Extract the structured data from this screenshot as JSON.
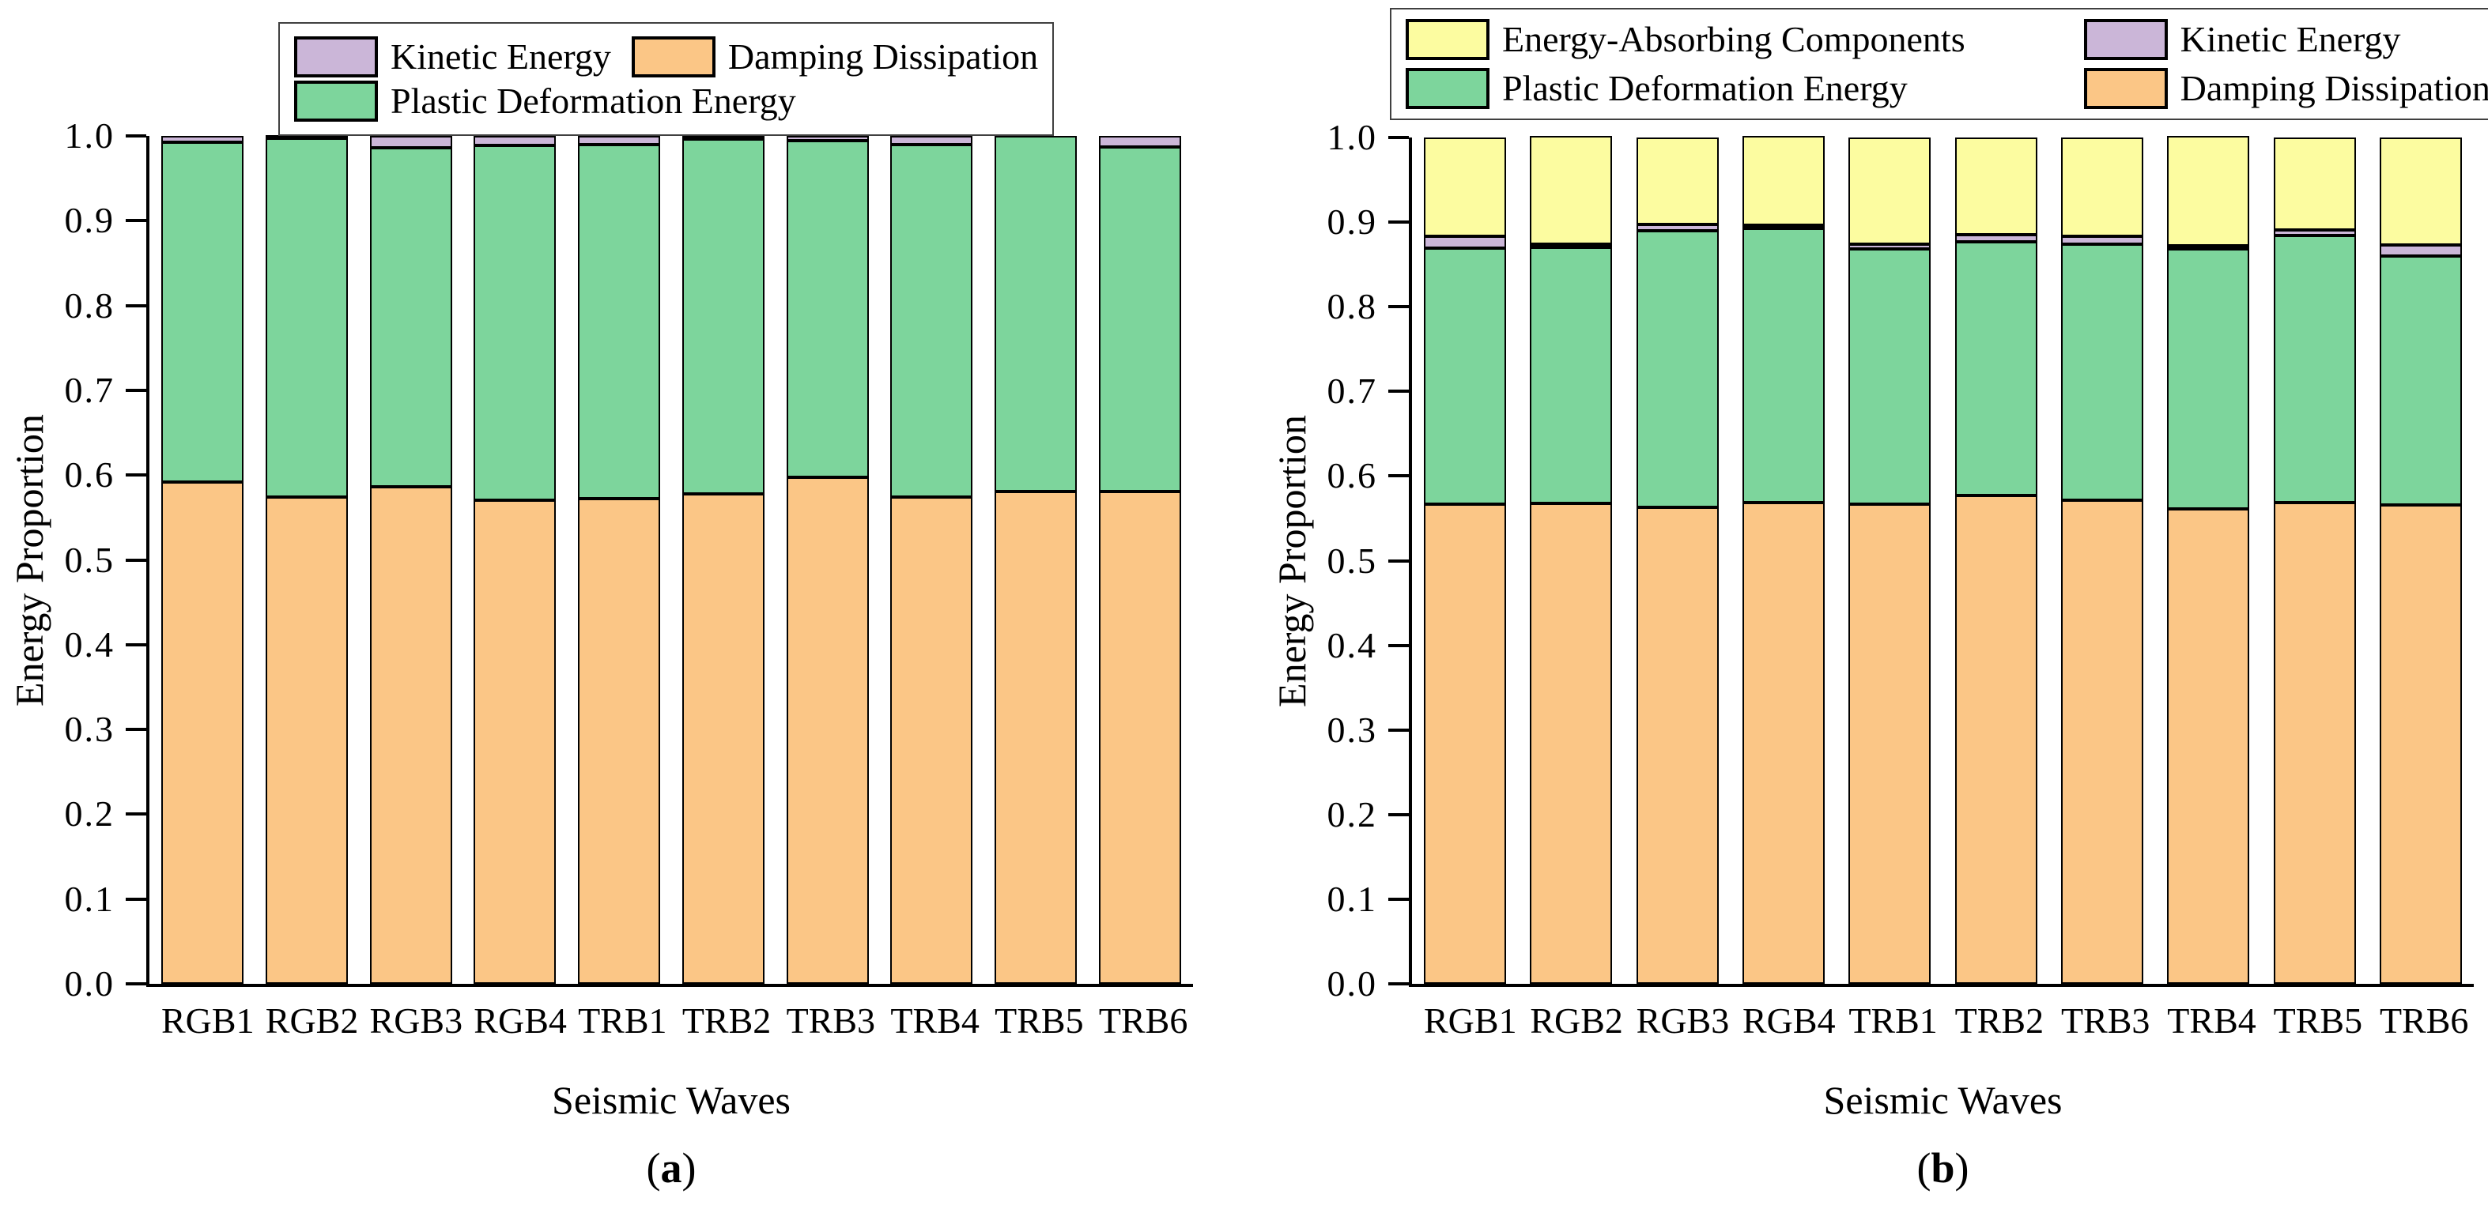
{
  "chart_data": [
    {
      "type": "bar",
      "stacked": true,
      "panel": "a",
      "caption_open": "(",
      "caption_letter": "a",
      "caption_close": ")",
      "xlabel": "Seismic Waves",
      "ylabel": "Energy Proportion",
      "categories": [
        "RGB1",
        "RGB2",
        "RGB3",
        "RGB4",
        "TRB1",
        "TRB2",
        "TRB3",
        "TRB4",
        "TRB5",
        "TRB6"
      ],
      "ylim": [
        0.0,
        1.0
      ],
      "yticks": [
        "0.0",
        "0.1",
        "0.2",
        "0.3",
        "0.4",
        "0.5",
        "0.6",
        "0.7",
        "0.8",
        "0.9",
        "1.0"
      ],
      "grid": false,
      "legend_position": "top",
      "legend_layout": "rows",
      "legend_rows": [
        [
          "Kinetic Energy",
          "Damping Dissipation"
        ],
        [
          "Plastic Deformation Energy"
        ]
      ],
      "series": [
        {
          "name": "Damping Dissipation",
          "color": "#FBC686",
          "values": [
            0.592,
            0.574,
            0.586,
            0.57,
            0.572,
            0.578,
            0.597,
            0.574,
            0.581,
            0.581
          ]
        },
        {
          "name": "Plastic Deformation Energy",
          "color": "#7DD59C",
          "values": [
            0.401,
            0.423,
            0.4,
            0.419,
            0.418,
            0.418,
            0.397,
            0.416,
            0.419,
            0.406
          ]
        },
        {
          "name": "Kinetic Energy",
          "color": "#CBB6D8",
          "values": [
            0.007,
            0.003,
            0.014,
            0.011,
            0.01,
            0.004,
            0.006,
            0.01,
            0.0,
            0.013
          ]
        }
      ]
    },
    {
      "type": "bar",
      "stacked": true,
      "panel": "b",
      "caption_open": "(",
      "caption_letter": "b",
      "caption_close": ")",
      "xlabel": "Seismic Waves",
      "ylabel": "Energy Proportion",
      "categories": [
        "RGB1",
        "RGB2",
        "RGB3",
        "RGB4",
        "TRB1",
        "TRB2",
        "TRB3",
        "TRB4",
        "TRB5",
        "TRB6"
      ],
      "ylim": [
        0.0,
        1.0
      ],
      "yticks": [
        "0.0",
        "0.1",
        "0.2",
        "0.3",
        "0.4",
        "0.5",
        "0.6",
        "0.7",
        "0.8",
        "0.9",
        "1.0"
      ],
      "grid": false,
      "legend_position": "top",
      "legend_layout": "grid",
      "legend_rows": [
        [
          "Energy-Absorbing Components",
          "Kinetic Energy"
        ],
        [
          "Plastic Deformation Energy",
          "Damping Dissipation"
        ]
      ],
      "series": [
        {
          "name": "Damping Dissipation",
          "color": "#FBC686",
          "values": [
            0.567,
            0.568,
            0.563,
            0.569,
            0.567,
            0.577,
            0.571,
            0.561,
            0.569,
            0.566
          ]
        },
        {
          "name": "Plastic Deformation Energy",
          "color": "#7DD59C",
          "values": [
            0.302,
            0.302,
            0.327,
            0.324,
            0.301,
            0.3,
            0.303,
            0.307,
            0.315,
            0.294
          ]
        },
        {
          "name": "Kinetic Energy",
          "color": "#CBB6D8",
          "values": [
            0.014,
            0.002,
            0.007,
            0.002,
            0.006,
            0.008,
            0.009,
            0.002,
            0.007,
            0.013
          ]
        },
        {
          "name": "Energy-Absorbing Components",
          "color": "#FCFCA0",
          "values": [
            0.117,
            0.128,
            0.103,
            0.105,
            0.126,
            0.115,
            0.117,
            0.13,
            0.109,
            0.127
          ]
        }
      ]
    }
  ]
}
